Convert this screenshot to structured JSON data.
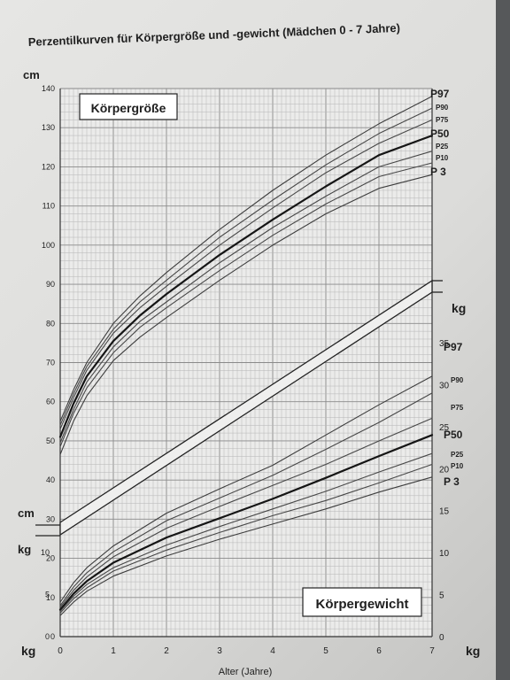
{
  "chart_data": {
    "type": "line",
    "title": "Perzentilkurven für Körpergröße und -gewicht (Mädchen 0 - 7 Jahre)",
    "xlabel": "Alter (Jahre)",
    "x_ticks": [
      "0",
      "1",
      "2",
      "3",
      "4",
      "5",
      "6",
      "7"
    ],
    "xlim": [
      0,
      7
    ],
    "grid": true,
    "height_panel": {
      "label": "Körpergröße",
      "unit_top": "cm",
      "unit_bottom": "cm",
      "ylim": [
        0,
        140
      ],
      "y_ticks": [
        "0",
        "10",
        "20",
        "30",
        "40",
        "50",
        "60",
        "70",
        "80",
        "90",
        "100",
        "110",
        "120",
        "130",
        "140"
      ],
      "series": [
        {
          "name": "P97",
          "x": [
            0,
            0.25,
            0.5,
            1,
            1.5,
            2,
            3,
            4,
            5,
            6,
            7
          ],
          "values": [
            55,
            63,
            70,
            80,
            87,
            93,
            104,
            114,
            123,
            131,
            138
          ]
        },
        {
          "name": "P90",
          "x": [
            0,
            0.25,
            0.5,
            1,
            1.5,
            2,
            3,
            4,
            5,
            6,
            7
          ],
          "values": [
            54,
            62,
            69,
            78.5,
            85.5,
            91,
            102,
            111.5,
            120.5,
            128.5,
            135
          ]
        },
        {
          "name": "P75",
          "x": [
            0,
            0.25,
            0.5,
            1,
            1.5,
            2,
            3,
            4,
            5,
            6,
            7
          ],
          "values": [
            53,
            61,
            68,
            77.5,
            84,
            89.5,
            100,
            109.5,
            118.5,
            126,
            132
          ]
        },
        {
          "name": "P50",
          "x": [
            0,
            0.25,
            0.5,
            1,
            1.5,
            2,
            3,
            4,
            5,
            6,
            7
          ],
          "values": [
            51,
            59.5,
            66.5,
            75.5,
            82,
            87.5,
            97.5,
            106.5,
            115,
            123,
            128
          ]
        },
        {
          "name": "P25",
          "x": [
            0,
            0.25,
            0.5,
            1,
            1.5,
            2,
            3,
            4,
            5,
            6,
            7
          ],
          "values": [
            49.5,
            58,
            65,
            74,
            80.5,
            85.5,
            95.5,
            104.5,
            112.5,
            120,
            124
          ]
        },
        {
          "name": "P10",
          "x": [
            0,
            0.25,
            0.5,
            1,
            1.5,
            2,
            3,
            4,
            5,
            6,
            7
          ],
          "values": [
            48.5,
            57,
            63.5,
            72.5,
            79,
            84,
            93.5,
            102.5,
            110.5,
            117.5,
            121
          ]
        },
        {
          "name": "P 3",
          "x": [
            0,
            0.25,
            0.5,
            1,
            1.5,
            2,
            3,
            4,
            5,
            6,
            7
          ],
          "values": [
            46.5,
            55,
            61.5,
            70.5,
            76.5,
            81.5,
            91,
            100,
            108,
            114.5,
            118
          ]
        }
      ]
    },
    "weight_panel": {
      "label": "Körpergewicht",
      "unit_top": "kg",
      "unit_left": "kg",
      "unit_bottom_left": "kg",
      "unit_bottom_right": "kg",
      "ylim": [
        0,
        35
      ],
      "y_ticks_left": [
        "0",
        "5",
        "10"
      ],
      "y_ticks_right": [
        "0",
        "5",
        "10",
        "15",
        "20",
        "25",
        "30",
        "35"
      ],
      "series": [
        {
          "name": "P97",
          "x": [
            0,
            0.25,
            0.5,
            1,
            2,
            3,
            4,
            5,
            6,
            7
          ],
          "values": [
            4.1,
            6.4,
            8.2,
            10.8,
            14.7,
            17.6,
            20.4,
            24,
            27.6,
            31
          ]
        },
        {
          "name": "P90",
          "x": [
            0,
            0.25,
            0.5,
            1,
            2,
            3,
            4,
            5,
            6,
            7
          ],
          "values": [
            3.7,
            5.9,
            7.6,
            10.1,
            13.8,
            16.5,
            19.2,
            22.3,
            25.5,
            29
          ]
        },
        {
          "name": "P75",
          "x": [
            0,
            0.25,
            0.5,
            1,
            2,
            3,
            4,
            5,
            6,
            7
          ],
          "values": [
            3.5,
            5.5,
            7.1,
            9.5,
            12.9,
            15.5,
            18,
            20.5,
            23.3,
            26
          ]
        },
        {
          "name": "P50",
          "x": [
            0,
            0.25,
            0.5,
            1,
            2,
            3,
            4,
            5,
            6,
            7
          ],
          "values": [
            3.2,
            5.1,
            6.6,
            8.8,
            11.8,
            14.1,
            16.4,
            18.9,
            21.5,
            24
          ]
        },
        {
          "name": "P25",
          "x": [
            0,
            0.25,
            0.5,
            1,
            2,
            3,
            4,
            5,
            6,
            7
          ],
          "values": [
            3,
            4.8,
            6.2,
            8.2,
            10.9,
            13.1,
            15.2,
            17.3,
            19.6,
            21.8
          ]
        },
        {
          "name": "P10",
          "x": [
            0,
            0.25,
            0.5,
            1,
            2,
            3,
            4,
            5,
            6,
            7
          ],
          "values": [
            2.8,
            4.5,
            5.8,
            7.8,
            10.3,
            12.4,
            14.4,
            16.2,
            18.3,
            20.5
          ]
        },
        {
          "name": "P 3",
          "x": [
            0,
            0.25,
            0.5,
            1,
            2,
            3,
            4,
            5,
            6,
            7
          ],
          "values": [
            2.5,
            4.1,
            5.4,
            7.2,
            9.6,
            11.6,
            13.4,
            15.2,
            17.2,
            19
          ]
        }
      ]
    }
  }
}
